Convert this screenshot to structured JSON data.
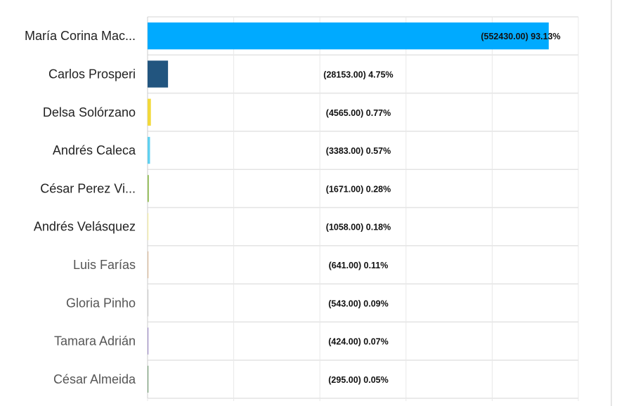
{
  "chart_data": {
    "type": "bar",
    "orientation": "horizontal",
    "categories": [
      "María Corina Mac...",
      "Carlos Prosperi",
      "Delsa Solórzano",
      "Andrés Caleca",
      "César Perez Vi...",
      "Andrés Velásquez",
      "Luis Farías",
      "Gloria Pinho",
      "Tamara Adrián",
      "César Almeida"
    ],
    "values": [
      93.13,
      4.75,
      0.77,
      0.57,
      0.28,
      0.18,
      0.11,
      0.09,
      0.07,
      0.05
    ],
    "votes": [
      552430,
      28153,
      4565,
      3383,
      1671,
      1058,
      641,
      543,
      424,
      295
    ],
    "data_labels": [
      "(552430.00) 93.13%",
      "(28153.00) 4.75%",
      "(4565.00) 0.77%",
      "(3383.00) 0.57%",
      "(1671.00) 0.28%",
      "(1058.00) 0.18%",
      "(641.00) 0.11%",
      "(543.00) 0.09%",
      "(424.00) 0.07%",
      "(295.00) 0.05%"
    ],
    "colors": [
      "#00aaff",
      "#22557f",
      "#f2d93a",
      "#5fd0f0",
      "#8ab84a",
      "#f5eea0",
      "#d9b99a",
      "#cccccc",
      "#9f8fc8",
      "#7aa07a"
    ],
    "xlim": [
      0,
      100
    ],
    "xticks": [
      "0",
      "20",
      "40",
      "60",
      "80",
      "100"
    ],
    "grid": true,
    "title": "",
    "xlabel": "",
    "ylabel": ""
  }
}
